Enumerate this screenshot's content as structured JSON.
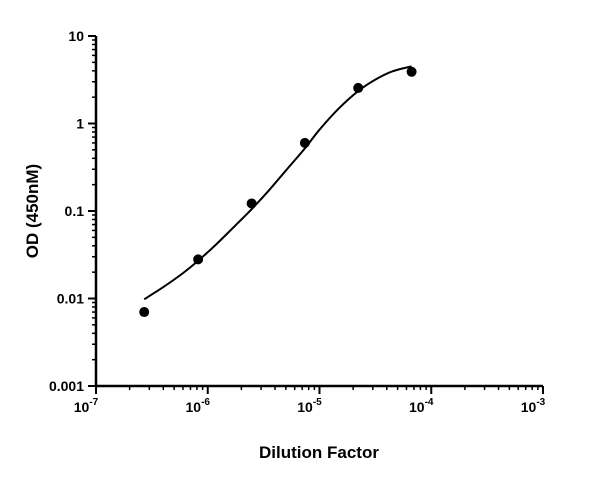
{
  "chart_data": {
    "type": "scatter",
    "title": "",
    "xlabel": "Dilution Factor",
    "ylabel": "OD (450nM)",
    "x_scale": "log",
    "y_scale": "log",
    "xlim": [
      1e-07,
      0.001
    ],
    "ylim": [
      0.001,
      10
    ],
    "grid": false,
    "legend": "none",
    "x_ticks": [
      {
        "base": "10",
        "exp": "-7",
        "value": 1e-07
      },
      {
        "base": "10",
        "exp": "-6",
        "value": 1e-06
      },
      {
        "base": "10",
        "exp": "-5",
        "value": 1e-05
      },
      {
        "base": "10",
        "exp": "-4",
        "value": 0.0001
      },
      {
        "base": "10",
        "exp": "-3",
        "value": 0.001
      }
    ],
    "y_ticks": [
      {
        "label": "10",
        "value": 10
      },
      {
        "label": "1",
        "value": 1
      },
      {
        "label": "0.1",
        "value": 0.1
      },
      {
        "label": "0.01",
        "value": 0.01
      },
      {
        "label": "0.001",
        "value": 0.001
      }
    ],
    "series": [
      {
        "points": [
          {
            "x": 2.7e-07,
            "y": 0.007
          },
          {
            "x": 8.2e-07,
            "y": 0.028
          },
          {
            "x": 2.47e-06,
            "y": 0.122
          },
          {
            "x": 7.4e-06,
            "y": 0.6
          },
          {
            "x": 2.22e-05,
            "y": 2.55
          },
          {
            "x": 6.67e-05,
            "y": 3.9
          }
        ]
      }
    ],
    "fit_curve": {
      "x": [
        2.7e-07,
        4e-07,
        6e-07,
        8.2e-07,
        1.2e-06,
        1.8e-06,
        2.47e-06,
        3.5e-06,
        5e-06,
        7.4e-06,
        1e-05,
        1.5e-05,
        2.22e-05,
        3.2e-05,
        4.5e-05,
        6.67e-05
      ],
      "y": [
        0.0098,
        0.0135,
        0.0195,
        0.027,
        0.042,
        0.07,
        0.105,
        0.17,
        0.29,
        0.52,
        0.85,
        1.5,
        2.35,
        3.2,
        3.95,
        4.5
      ]
    },
    "colors": {
      "marker": "#000000",
      "line": "#000000",
      "axis": "#000000"
    }
  }
}
